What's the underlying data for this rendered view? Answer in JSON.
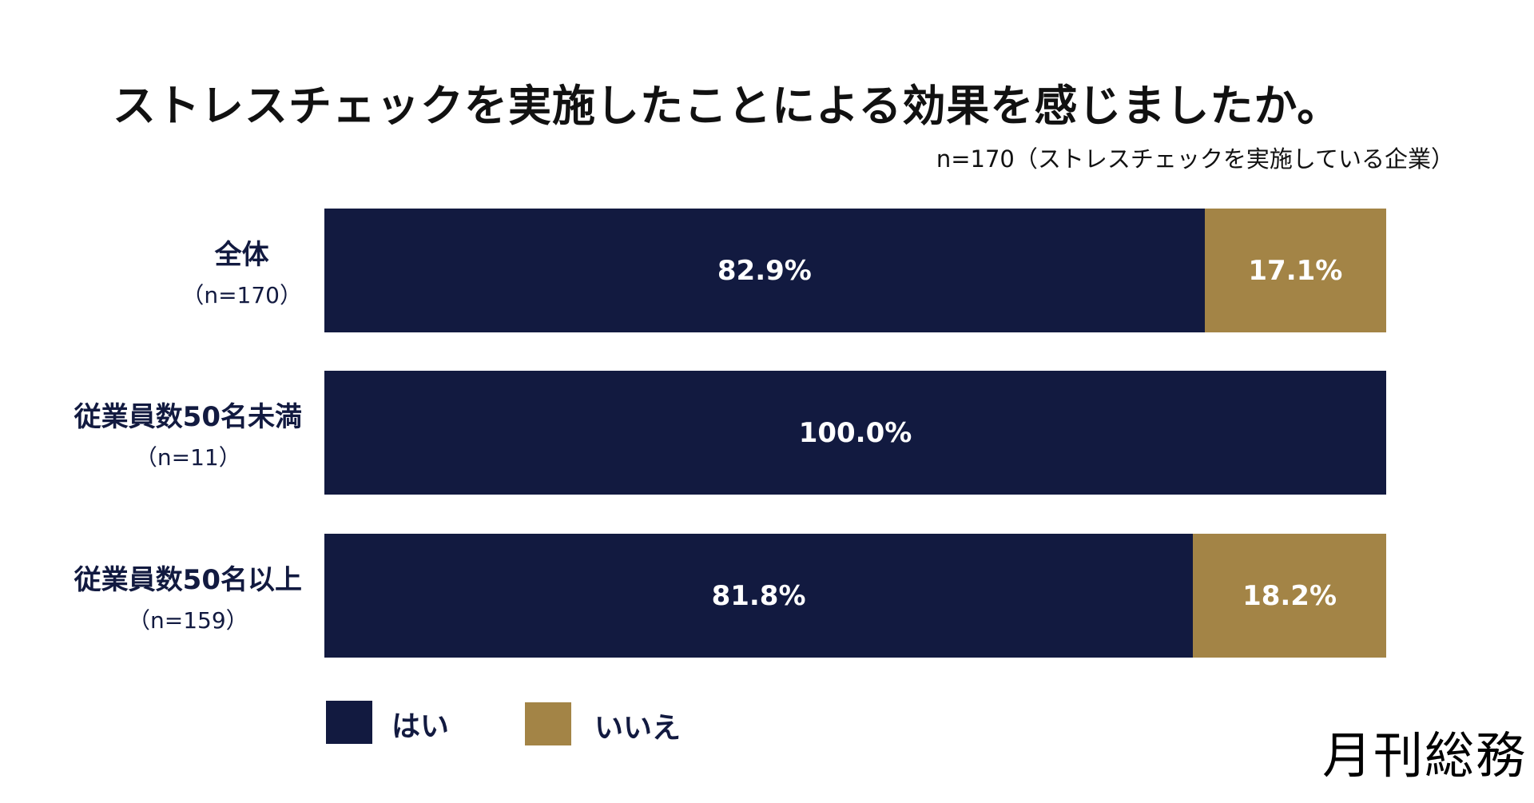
{
  "chart_data": {
    "type": "bar",
    "orientation": "horizontal-stacked-100",
    "title": "ストレスチェックを実施したことによる効果を感じましたか。",
    "subtitle": "n=170（ストレスチェックを実施している企業）",
    "categories": [
      {
        "label": "全体",
        "n": "（n=170）"
      },
      {
        "label": "従業員数50名未満",
        "n": "（n=11）"
      },
      {
        "label": "従業員数50名以上",
        "n": "（n=159）"
      }
    ],
    "series": [
      {
        "name": "はい",
        "color": "#121a40",
        "values": [
          82.9,
          100.0,
          81.8
        ]
      },
      {
        "name": "いいえ",
        "color": "#a38446",
        "values": [
          17.1,
          0.0,
          18.2
        ]
      }
    ],
    "value_labels": [
      [
        "82.9%",
        "17.1%"
      ],
      [
        "100.0%",
        ""
      ],
      [
        "81.8%",
        "18.2%"
      ]
    ],
    "xlim": [
      0,
      100
    ],
    "grid": false,
    "legend_placement": "bottom-left"
  },
  "brand": {
    "logo_text": "月刊総務"
  }
}
